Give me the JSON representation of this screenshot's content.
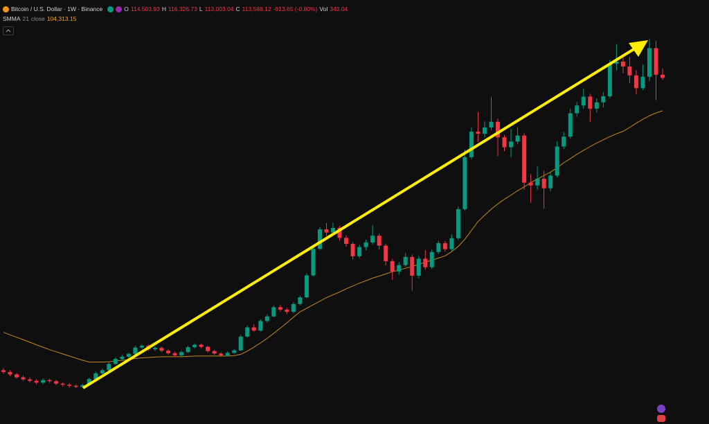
{
  "header": {
    "symbol": "Bitcoin / U.S. Dollar · 1W · Binance",
    "open_label": "O",
    "open": "114,503.93",
    "high_label": "H",
    "high": "116,326.73",
    "low_label": "L",
    "low": "113,003.04",
    "close_label": "C",
    "close": "113,588.12",
    "change": "-913.65 (-0.80%)",
    "volume_label": "Vol",
    "volume": "343.04",
    "indicator_length": "21",
    "indicator_source": "close",
    "indicator_value": "104,313.15"
  },
  "chart_data": {
    "type": "candlestick",
    "ylim": [
      15800,
      135600
    ],
    "up_color": "#089981",
    "down_color": "#f23645",
    "open": [
      31000,
      30500,
      29800,
      29000,
      28400,
      28000,
      27500,
      28200,
      27900,
      27200,
      26900,
      26600,
      26300,
      26800,
      28500,
      30100,
      31000,
      32800,
      34200,
      34800,
      35600,
      37400,
      37900,
      36900,
      37300,
      36500,
      35800,
      35200,
      36100,
      37500,
      38200,
      37600,
      36400,
      35700,
      35200,
      35900,
      36600,
      40500,
      43100,
      42200,
      44900,
      46200,
      48800,
      48100,
      47500,
      49700,
      51600,
      57800,
      65300,
      70800,
      69900,
      71200,
      68400,
      66700,
      63200,
      65800,
      67100,
      69000,
      66200,
      61800,
      58900,
      60700,
      63000,
      57700,
      62500,
      60100,
      64400,
      66900,
      65200,
      68300,
      76500,
      91200,
      98400,
      97800,
      99600,
      101200,
      96800,
      94000,
      95600,
      97300,
      84000,
      83200,
      85100,
      82400,
      86000,
      94200,
      97000,
      103600,
      105800,
      108300,
      104900,
      106700,
      108400,
      117600,
      118200,
      116800,
      114300,
      110700,
      113900,
      122000,
      114500
    ],
    "high": [
      31600,
      31000,
      30200,
      29500,
      29000,
      28500,
      28700,
      28600,
      28300,
      27600,
      27300,
      27000,
      27200,
      28900,
      30600,
      31500,
      33300,
      34700,
      35300,
      36000,
      37900,
      38400,
      38300,
      37800,
      37700,
      36900,
      36200,
      36500,
      37900,
      38600,
      38500,
      37900,
      36800,
      36100,
      36300,
      37000,
      41000,
      43600,
      44000,
      45400,
      46800,
      49300,
      49400,
      48600,
      50200,
      52100,
      58400,
      66000,
      71500,
      72600,
      72700,
      71800,
      69100,
      67200,
      66500,
      67900,
      71900,
      69600,
      66800,
      62400,
      61500,
      64100,
      63700,
      63300,
      64900,
      65100,
      67600,
      67500,
      69400,
      77200,
      93400,
      99600,
      104000,
      101300,
      108300,
      102100,
      97500,
      99200,
      99500,
      98000,
      86400,
      88500,
      87400,
      87000,
      95700,
      98300,
      104900,
      106800,
      110500,
      109100,
      107800,
      109600,
      118700,
      123200,
      120000,
      119500,
      115800,
      117400,
      124500,
      124000,
      116300
    ],
    "low": [
      30000,
      29300,
      28600,
      28000,
      27500,
      27000,
      27100,
      27400,
      26800,
      26400,
      26100,
      25900,
      26000,
      26600,
      28200,
      29800,
      30700,
      32500,
      33800,
      34400,
      35300,
      37000,
      36500,
      36400,
      36100,
      35400,
      34800,
      34900,
      35800,
      37100,
      37200,
      36000,
      35300,
      34800,
      34900,
      35600,
      36400,
      40200,
      41800,
      41900,
      44500,
      45900,
      47600,
      46900,
      47100,
      49300,
      51300,
      57500,
      64900,
      68900,
      69200,
      67600,
      65900,
      62300,
      62700,
      64900,
      66500,
      65100,
      60600,
      56600,
      58000,
      60200,
      53500,
      57000,
      59400,
      59600,
      63800,
      64500,
      64700,
      67800,
      76000,
      90600,
      95500,
      96700,
      98800,
      91500,
      92900,
      91200,
      94800,
      82000,
      78300,
      82000,
      76600,
      81500,
      85400,
      93500,
      96400,
      102600,
      104900,
      101200,
      103800,
      105200,
      107900,
      115700,
      114900,
      112100,
      108900,
      110200,
      112700,
      107300,
      113000
    ],
    "close": [
      30500,
      29800,
      29000,
      28400,
      28000,
      27500,
      28200,
      27900,
      27200,
      26900,
      26600,
      26300,
      26800,
      28500,
      30100,
      31000,
      32800,
      34200,
      34800,
      35600,
      37400,
      37900,
      36900,
      37300,
      36500,
      35800,
      35200,
      36100,
      37500,
      38200,
      37600,
      36400,
      35700,
      35200,
      35900,
      36600,
      40500,
      43100,
      42200,
      44900,
      46200,
      48800,
      48100,
      47500,
      49700,
      51600,
      57800,
      65300,
      70800,
      69900,
      71200,
      68400,
      66700,
      63200,
      65800,
      67100,
      69000,
      66200,
      61800,
      58900,
      60700,
      63000,
      57700,
      62500,
      60100,
      64400,
      66900,
      65200,
      68300,
      76500,
      91200,
      98400,
      97800,
      99600,
      101200,
      96800,
      94000,
      95600,
      97300,
      84000,
      83200,
      85100,
      82400,
      86000,
      94200,
      97000,
      103600,
      105800,
      108300,
      104900,
      106700,
      108400,
      117600,
      118200,
      116800,
      114300,
      110700,
      113900,
      122000,
      114500,
      113600
    ],
    "series": [
      {
        "name": "SMMA",
        "color": "#c28a1a",
        "values": [
          41700,
          41000,
          40300,
          39600,
          38900,
          38200,
          37500,
          36800,
          36200,
          35600,
          35000,
          34400,
          33800,
          33300,
          33300,
          33300,
          33400,
          33600,
          33800,
          34000,
          34300,
          34500,
          34600,
          34700,
          34800,
          34800,
          34800,
          34800,
          34900,
          35000,
          35000,
          35000,
          35000,
          35000,
          35000,
          35100,
          35500,
          36400,
          37500,
          38700,
          40000,
          41400,
          42900,
          44400,
          46000,
          47500,
          48500,
          49500,
          50500,
          51500,
          52300,
          53100,
          54000,
          54800,
          55600,
          56300,
          57000,
          57600,
          58200,
          58800,
          59300,
          59800,
          60300,
          60900,
          61500,
          62100,
          62700,
          63300,
          64500,
          66000,
          68000,
          70500,
          73000,
          74800,
          76500,
          78000,
          79300,
          80500,
          81700,
          82800,
          84000,
          85000,
          86000,
          87000,
          88200,
          89600,
          90800,
          92000,
          93100,
          94200,
          95200,
          96100,
          97000,
          97800,
          98500,
          99600,
          100800,
          101900,
          102900,
          103700,
          104300
        ]
      }
    ]
  }
}
